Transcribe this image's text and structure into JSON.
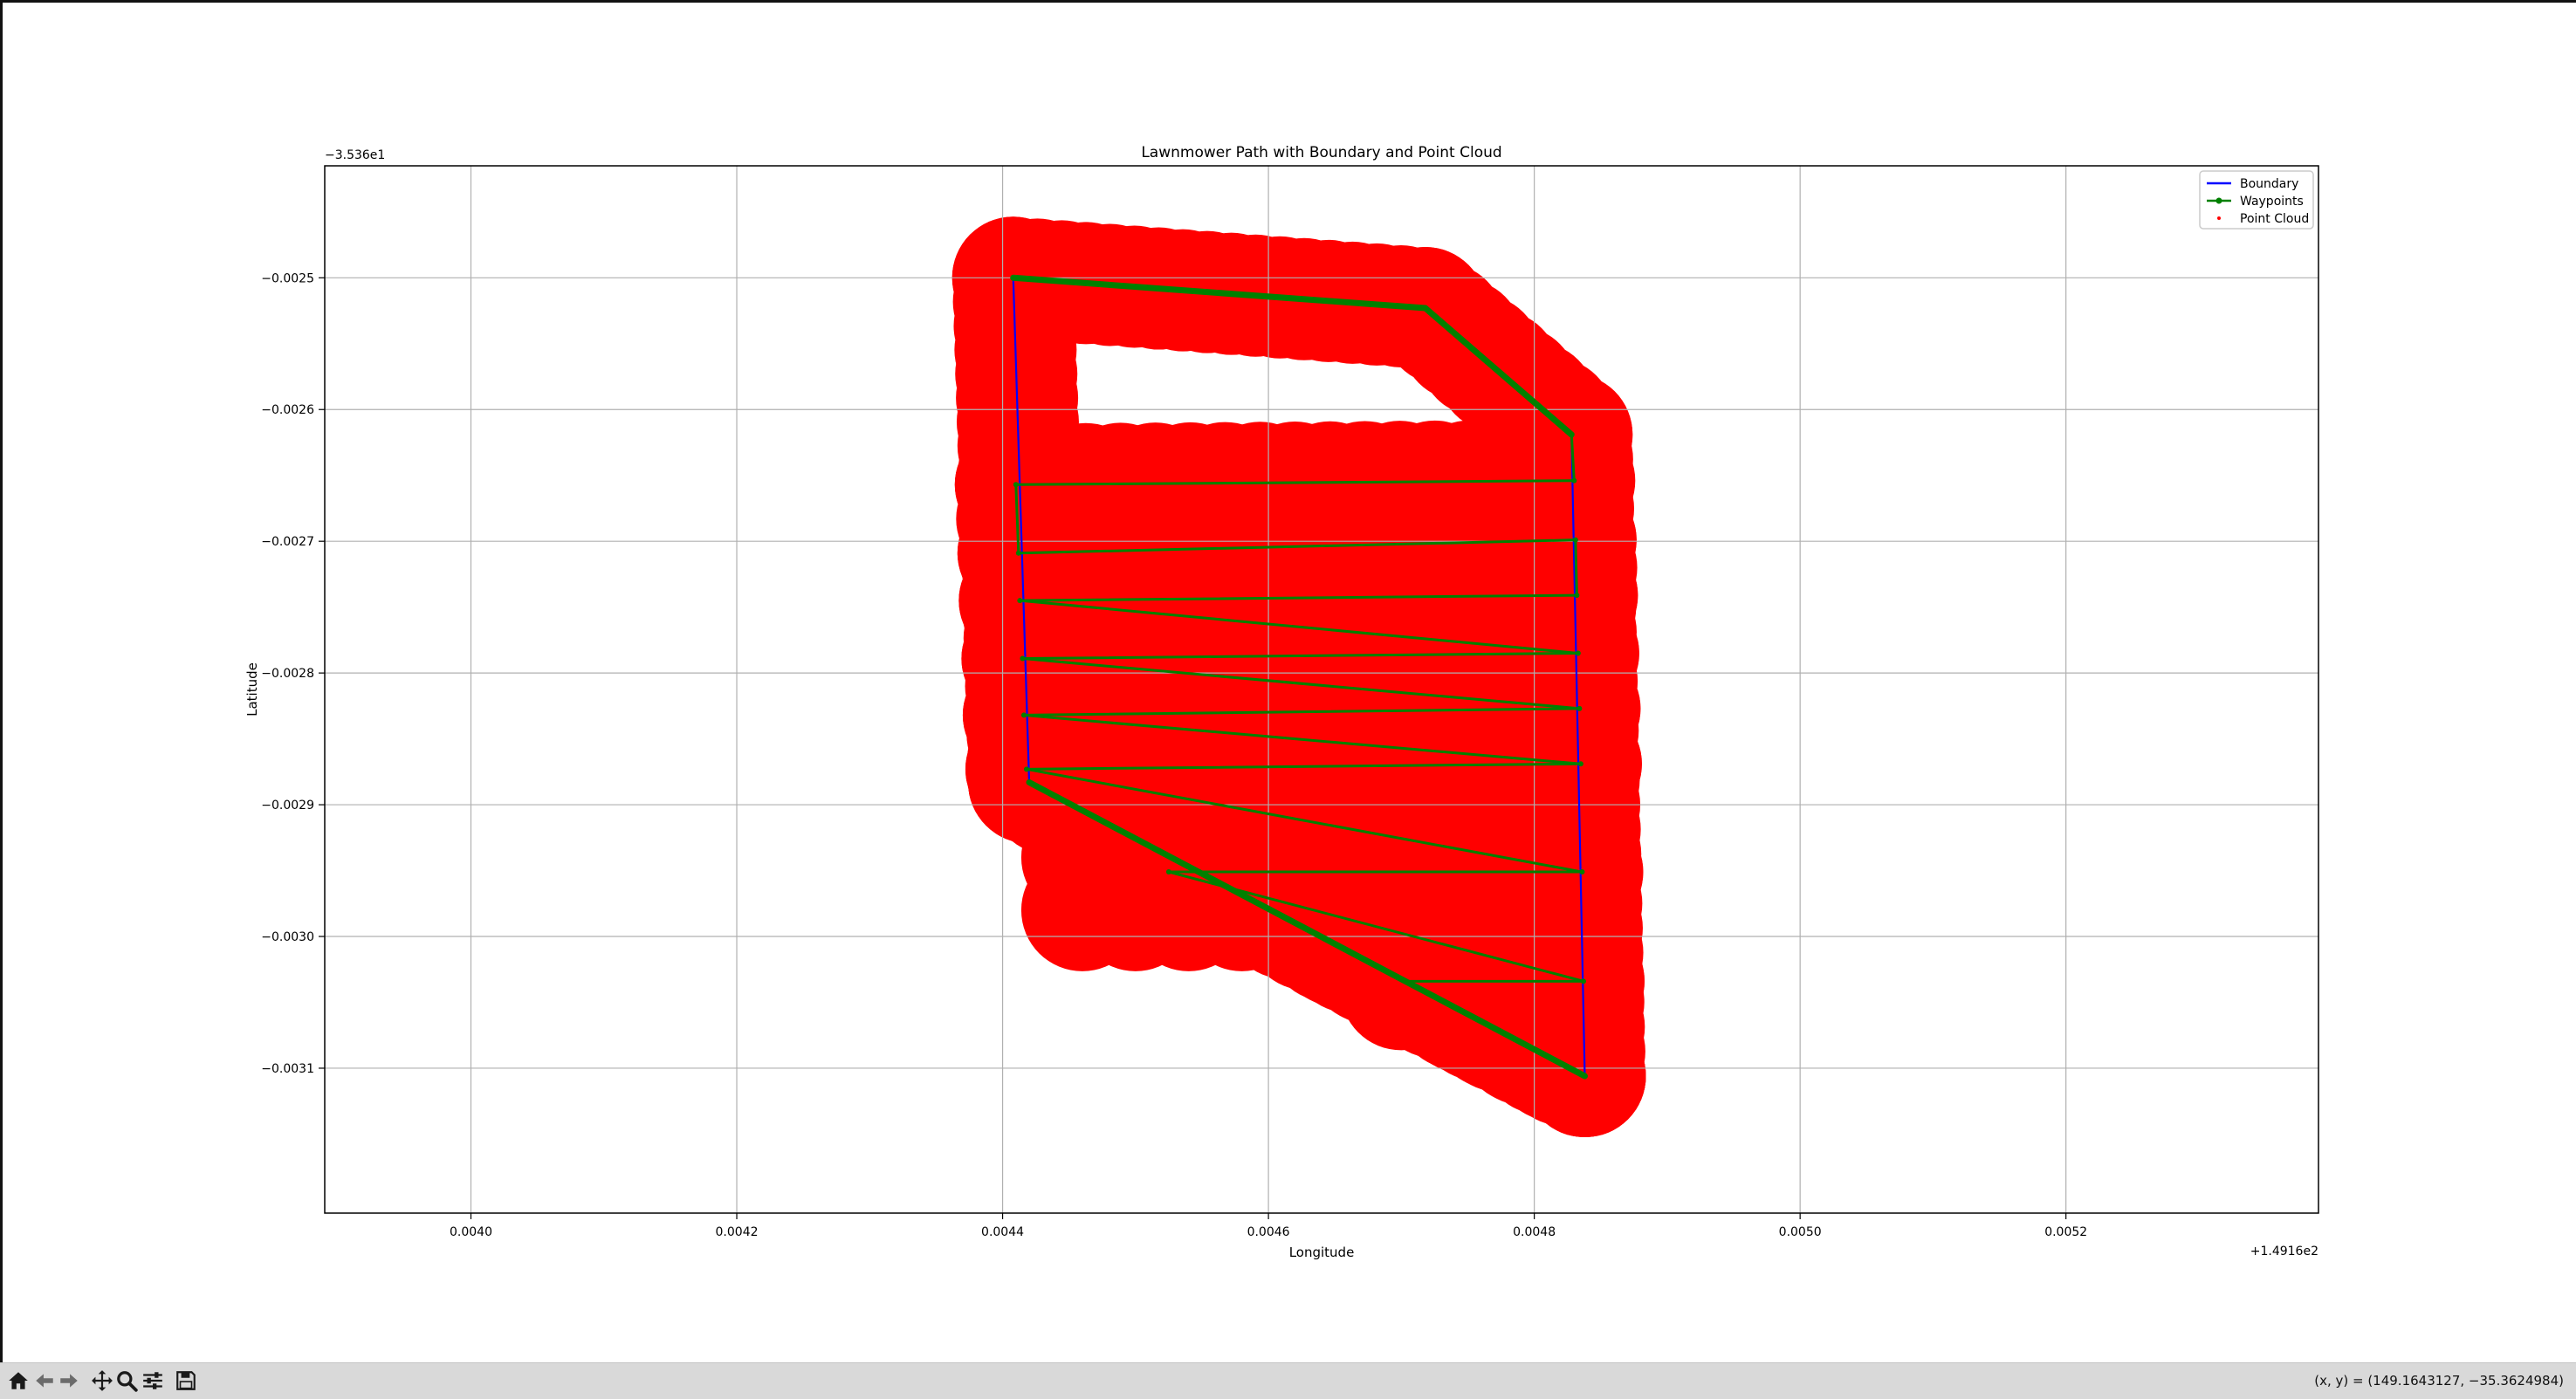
{
  "toolbar": {
    "buttons": [
      {
        "name": "home-icon"
      },
      {
        "name": "back-arrow-icon"
      },
      {
        "name": "forward-arrow-icon"
      },
      {
        "name": "pan-move-icon"
      },
      {
        "name": "zoom-magnifier-icon"
      },
      {
        "name": "configure-subplots-icon"
      },
      {
        "name": "save-floppy-icon"
      }
    ],
    "coord_readout": "(x, y) = (149.1643127, −35.3624984)"
  },
  "colors": {
    "boundary": "#0000ff",
    "waypoints": "#008000",
    "point_cloud": "#ff0000",
    "grid": "#b0b0b0",
    "toolbar_bg": "#d9d9d9"
  },
  "chart_data": {
    "type": "line",
    "title": "Lawnmower Path with Boundary and Point Cloud",
    "xlabel": "Longitude",
    "ylabel": "Latitude",
    "x_offset_label": "+1.4916e2",
    "y_offset_label": "−3.536e1",
    "xlim": [
      0.00389,
      0.00539
    ],
    "ylim": [
      -0.00321,
      -0.002415
    ],
    "xticks": [
      0.004,
      0.0042,
      0.0044,
      0.0046,
      0.0048,
      0.005,
      0.0052
    ],
    "xtick_labels": [
      "0.0040",
      "0.0042",
      "0.0044",
      "0.0046",
      "0.0048",
      "0.0050",
      "0.0052"
    ],
    "yticks": [
      -0.0025,
      -0.0026,
      -0.0027,
      -0.0028,
      -0.0029,
      -0.003,
      -0.0031
    ],
    "ytick_labels": [
      "−0.0025",
      "−0.0026",
      "−0.0027",
      "−0.0028",
      "−0.0029",
      "−0.0030",
      "−0.0031"
    ],
    "grid": true,
    "legend_position": "upper-right",
    "series": [
      {
        "name": "Boundary",
        "kind": "line",
        "points": [
          [
            0.004408,
            -0.0025
          ],
          [
            0.004718,
            -0.002523
          ],
          [
            0.004828,
            -0.002619
          ],
          [
            0.004838,
            -0.003106
          ],
          [
            0.00442,
            -0.002883
          ],
          [
            0.004408,
            -0.0025
          ]
        ]
      },
      {
        "name": "Waypoints",
        "kind": "line-marker",
        "points": [
          [
            0.004408,
            -0.0025
          ],
          [
            0.004718,
            -0.002523
          ],
          [
            0.004828,
            -0.002619
          ],
          [
            0.00483,
            -0.002654
          ],
          [
            0.00441,
            -0.002657
          ],
          [
            0.004412,
            -0.002709
          ],
          [
            0.004831,
            -0.002699
          ],
          [
            0.004832,
            -0.002741
          ],
          [
            0.004413,
            -0.002745
          ],
          [
            0.004833,
            -0.002785
          ],
          [
            0.004415,
            -0.002789
          ],
          [
            0.004834,
            -0.002827
          ],
          [
            0.004416,
            -0.002832
          ],
          [
            0.004835,
            -0.002869
          ],
          [
            0.004418,
            -0.002873
          ],
          [
            0.004836,
            -0.002951
          ],
          [
            0.004525,
            -0.002951
          ],
          [
            0.004837,
            -0.003034
          ],
          [
            0.004703,
            -0.003034
          ],
          [
            0.004838,
            -0.003106
          ],
          [
            0.00442,
            -0.002883
          ]
        ]
      },
      {
        "name": "Point Cloud",
        "kind": "scatter",
        "note_points": "dense red scatter with very large markers tracing the boundary and interior rows"
      }
    ]
  }
}
